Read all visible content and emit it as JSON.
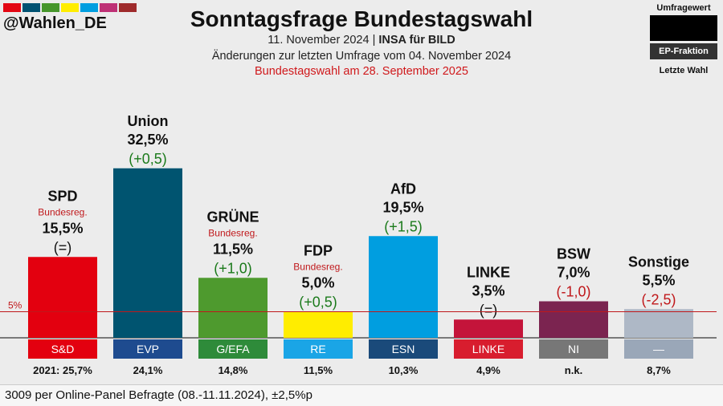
{
  "header": {
    "handle": "@Wahlen_DE",
    "title": "Sonntagsfrage Bundestagswahl",
    "date": "11. November 2024",
    "separator": " | ",
    "pollster": "INSA für BILD",
    "changes_note": "Änderungen zur letzten Umfrage vom 04. November 2024",
    "election_note": "Bundestagswahl am 28. September 2025"
  },
  "logo_colors": [
    "#e30613",
    "#005272",
    "#46962b",
    "#ffed00",
    "#009ee0",
    "#be3075",
    "#9e2a2b"
  ],
  "legend": {
    "top": "Umfragewert",
    "middle": "EP-Fraktion",
    "bottom": "Letzte Wahl"
  },
  "chart_data": {
    "type": "bar",
    "threshold": {
      "label": "5%",
      "value": 5
    },
    "ylim": [
      0,
      35
    ],
    "categories": [
      "SPD",
      "Union",
      "GRÜNE",
      "FDP",
      "AfD",
      "LINKE",
      "BSW",
      "Sonstige"
    ],
    "values": [
      15.5,
      32.5,
      11.5,
      5.0,
      19.5,
      3.5,
      7.0,
      5.5
    ],
    "value_labels": [
      "15,5%",
      "32,5%",
      "11,5%",
      "5,0%",
      "19,5%",
      "3,5%",
      "7,0%",
      "5,5%"
    ],
    "changes": [
      "(=)",
      "(+0,5)",
      "(+1,0)",
      "(+0,5)",
      "(+1,5)",
      "(=)",
      "(-1,0)",
      "(-2,5)"
    ],
    "change_colors": [
      "#111111",
      "#1b7a1b",
      "#1b7a1b",
      "#1b7a1b",
      "#1b7a1b",
      "#111111",
      "#c0181b",
      "#c0181b"
    ],
    "government": [
      "Bundesreg.",
      "",
      "Bundesreg.",
      "Bundesreg.",
      "",
      "",
      "",
      ""
    ],
    "bar_colors": [
      "#e3000f",
      "#005470",
      "#4e9a2e",
      "#ffed00",
      "#009ee0",
      "#c4143a",
      "#7b2450",
      "#aeb8c6"
    ],
    "ep_groups": [
      "S&D",
      "EVP",
      "G/EFA",
      "RE",
      "ESN",
      "LINKE",
      "NI",
      "—"
    ],
    "ep_colors": [
      "#e3000f",
      "#1e4b8f",
      "#2e8b3a",
      "#1aa5e6",
      "#1a4a7a",
      "#d81d2e",
      "#777777",
      "#9aa7b8"
    ],
    "last_election": [
      "2021: 25,7%",
      "24,1%",
      "14,8%",
      "11,5%",
      "10,3%",
      "4,9%",
      "n.k.",
      "8,7%"
    ]
  },
  "footer": {
    "note": "3009 per Online-Panel Befragte (08.-11.11.2024), ±2,5%p"
  }
}
